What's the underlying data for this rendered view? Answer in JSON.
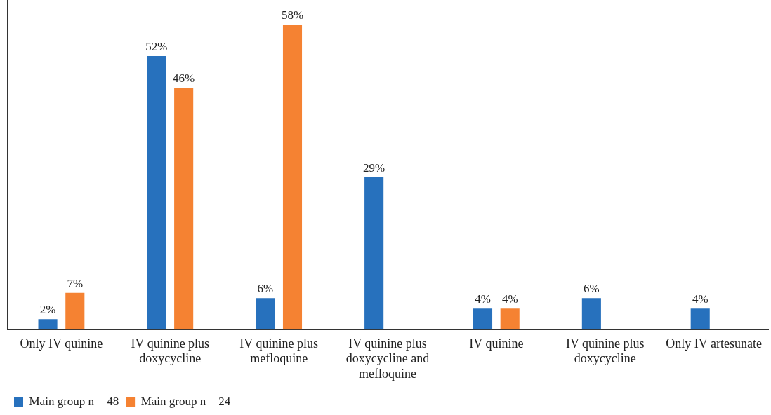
{
  "chart_data": {
    "type": "bar",
    "data_labels": true,
    "categories": [
      "Only IV quinine",
      "IV quinine plus doxycycline",
      "IV quinine plus mefloquine",
      "IV quinine plus doxycycline and mefloquine",
      "IV quinine",
      "IV quinine plus doxycycline",
      "Only IV artesunate"
    ],
    "series": [
      {
        "name": "Main group n = 48",
        "color": "#2771bd",
        "values": [
          2,
          52,
          6,
          29,
          4,
          6,
          4
        ],
        "value_labels": [
          "2%",
          "52%",
          "6%",
          "29%",
          "4%",
          "6%",
          "4%"
        ]
      },
      {
        "name": "Main group n = 24",
        "color": "#f58232",
        "values": [
          7,
          46,
          58,
          null,
          4,
          null,
          null
        ],
        "value_labels": [
          "7%",
          "46%",
          "58%",
          null,
          "4%",
          null,
          null
        ]
      }
    ],
    "grid": false,
    "legend": "bottom left"
  }
}
